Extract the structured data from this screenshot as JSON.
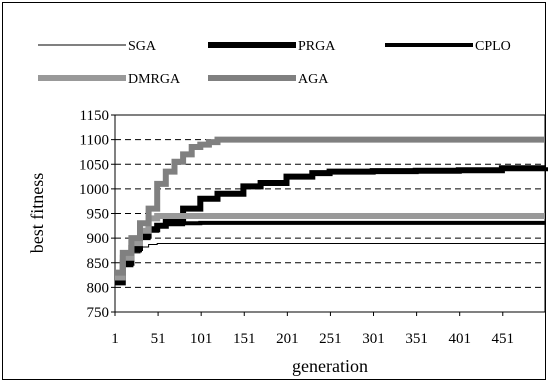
{
  "chart_data": {
    "type": "line",
    "title": "",
    "xlabel": "generation",
    "ylabel": "best fitness",
    "xlim": [
      1,
      500
    ],
    "ylim": [
      750,
      1150
    ],
    "x_ticks": [
      "1",
      "51",
      "101",
      "151",
      "201",
      "251",
      "301",
      "351",
      "401",
      "451"
    ],
    "y_ticks": [
      "750",
      "800",
      "850",
      "900",
      "950",
      "1000",
      "1050",
      "1100",
      "1150"
    ],
    "grid": "horizontal dashed",
    "legend_position": "top",
    "series": [
      {
        "name": "SGA",
        "color": "#000000",
        "style": "thin",
        "x": [
          1,
          10,
          20,
          30,
          40,
          50,
          500
        ],
        "y": [
          808,
          845,
          870,
          882,
          887,
          889,
          889
        ]
      },
      {
        "name": "PRGA",
        "color": "#000000",
        "style": "thick",
        "x": [
          1,
          10,
          20,
          30,
          40,
          50,
          60,
          80,
          100,
          120,
          150,
          170,
          200,
          230,
          250,
          300,
          350,
          400,
          450,
          500
        ],
        "y": [
          810,
          850,
          880,
          905,
          918,
          925,
          935,
          960,
          980,
          990,
          1005,
          1012,
          1025,
          1032,
          1035,
          1036,
          1037,
          1038,
          1042,
          1044
        ]
      },
      {
        "name": "CPLO",
        "color": "#000000",
        "style": "medium",
        "x": [
          1,
          10,
          20,
          30,
          40,
          50,
          60,
          80,
          100,
          500
        ],
        "y": [
          812,
          845,
          875,
          900,
          915,
          925,
          928,
          930,
          931,
          931
        ]
      },
      {
        "name": "DMRGA",
        "color": "#999999",
        "style": "thick",
        "x": [
          1,
          10,
          20,
          30,
          40,
          50,
          500
        ],
        "y": [
          820,
          860,
          890,
          915,
          940,
          945,
          945
        ]
      },
      {
        "name": "AGA",
        "color": "#808080",
        "style": "thick",
        "x": [
          1,
          10,
          20,
          30,
          40,
          50,
          60,
          70,
          80,
          90,
          100,
          110,
          120,
          500
        ],
        "y": [
          830,
          870,
          900,
          930,
          960,
          1010,
          1035,
          1055,
          1070,
          1085,
          1090,
          1095,
          1100,
          1100
        ]
      }
    ]
  }
}
